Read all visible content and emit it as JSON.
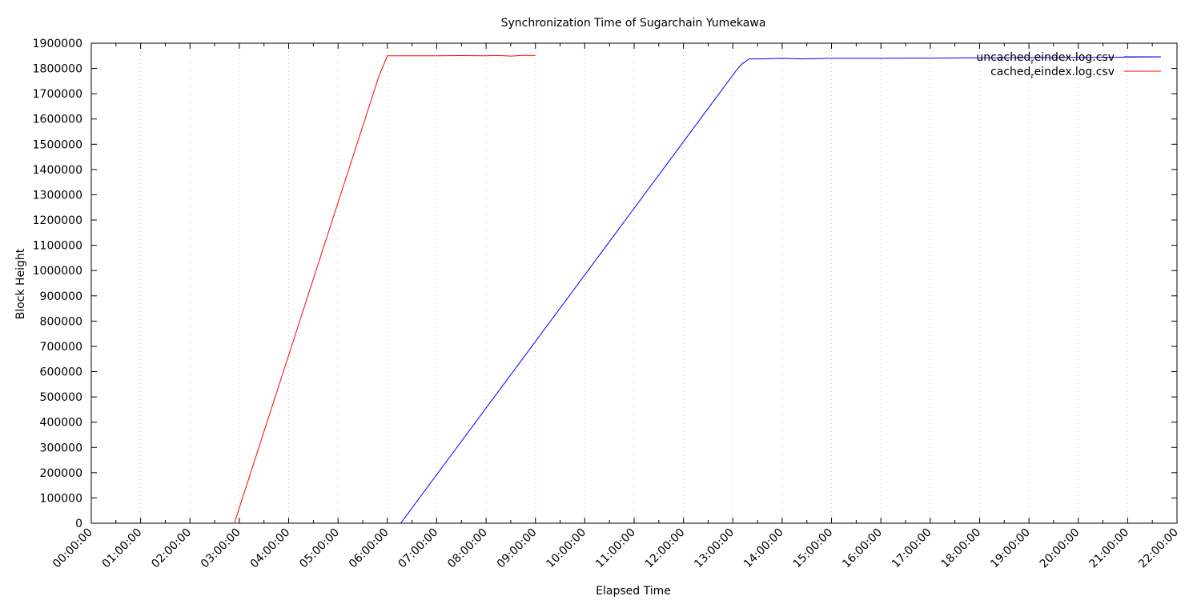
{
  "chart_data": {
    "type": "line",
    "title": "Synchronization Time of Sugarchain Yumekawa",
    "xlabel": "Elapsed Time",
    "ylabel": "Block Height",
    "x_unit": "hours",
    "xlim": [
      0,
      22
    ],
    "ylim": [
      0,
      1900000
    ],
    "x_tick_labels": [
      "00:00:00",
      "01:00:00",
      "02:00:00",
      "03:00:00",
      "04:00:00",
      "05:00:00",
      "06:00:00",
      "07:00:00",
      "08:00:00",
      "09:00:00",
      "10:00:00",
      "11:00:00",
      "12:00:00",
      "13:00:00",
      "14:00:00",
      "15:00:00",
      "16:00:00",
      "17:00:00",
      "18:00:00",
      "19:00:00",
      "20:00:00",
      "21:00:00",
      "22:00:00"
    ],
    "y_tick_labels": [
      "0",
      "100000",
      "200000",
      "300000",
      "400000",
      "500000",
      "600000",
      "700000",
      "800000",
      "900000",
      "1000000",
      "1100000",
      "1200000",
      "1300000",
      "1400000",
      "1500000",
      "1600000",
      "1700000",
      "1800000",
      "1900000"
    ],
    "grid": "x-dotted",
    "legend_position": "top-right",
    "series": [
      {
        "name": "uncached",
        "name_subscript": "r",
        "name_suffix": "eindex.log.csv",
        "color": "#0000ff",
        "x": [
          6.27,
          13.1,
          13.2,
          13.33,
          13.6,
          14.0,
          14.4,
          15.0,
          16.0,
          17.0,
          18.0,
          19.0,
          20.0,
          21.0,
          21.65
        ],
        "y": [
          0,
          1800000,
          1820000,
          1838000,
          1838000,
          1840000,
          1838000,
          1840000,
          1840000,
          1841000,
          1842000,
          1843000,
          1844000,
          1845000,
          1846000
        ]
      },
      {
        "name": "cached",
        "name_subscript": "r",
        "name_suffix": "eindex.log.csv",
        "color": "#ff0000",
        "x": [
          2.9,
          5.83,
          6.0,
          6.5,
          7.0,
          7.5,
          8.0,
          8.2,
          8.5,
          8.75,
          9.0
        ],
        "y": [
          0,
          1770000,
          1850000,
          1850000,
          1850000,
          1851000,
          1850000,
          1852000,
          1849000,
          1852000,
          1852000
        ]
      }
    ]
  }
}
